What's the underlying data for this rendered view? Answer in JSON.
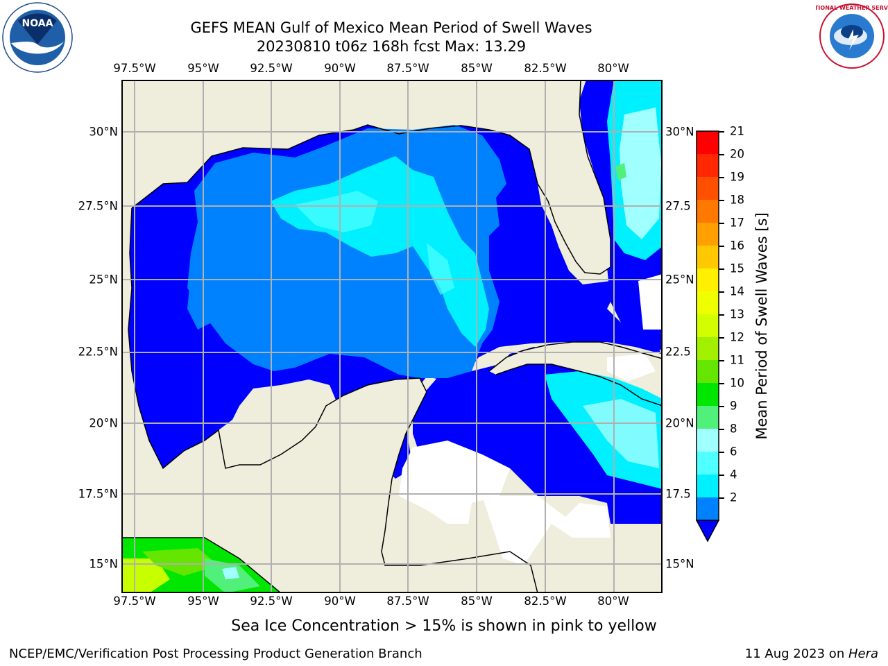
{
  "title_line1": "GEFS MEAN Gulf of Mexico Mean Period of Swell Waves",
  "title_line2": "20230810 t06z 168h fcst   Max: 13.29",
  "lon_labels": [
    "97.5°W",
    "95°W",
    "92.5°W",
    "90°W",
    "87.5°W",
    "85°W",
    "82.5°W",
    "80°W"
  ],
  "lat_labels": [
    "30°N",
    "27.5°N",
    "25°N",
    "22.5°N",
    "20°N",
    "17.5°N",
    "15°N"
  ],
  "right_lat_labels": [
    "30°N",
    "27.5",
    "25°N",
    "22.5",
    "20°N",
    "17.5",
    "15°N"
  ],
  "colorbar": {
    "label": "Mean Period of Swell Waves [s]",
    "ticks": [
      "21",
      "20",
      "19",
      "18",
      "17",
      "16",
      "15",
      "14",
      "13",
      "12",
      "11",
      "10",
      "9",
      "8",
      "6",
      "4",
      "2"
    ],
    "colors": [
      "#ff0000",
      "#ff2800",
      "#ff5000",
      "#ff7800",
      "#ffa000",
      "#ffc800",
      "#fff000",
      "#f0ff00",
      "#d2ff00",
      "#a0f000",
      "#64e600",
      "#00e600",
      "#50f07a",
      "#a0ffff",
      "#50ffff",
      "#00f0ff",
      "#0082ff"
    ],
    "extend_color": "#0000ff"
  },
  "colors": {
    "land": "#efeddc",
    "sea_low": "#0000ff",
    "sea_2": "#0082ff",
    "sea_4": "#00f0ff",
    "sea_6": "#50ffff",
    "sea_8": "#a0ffff",
    "green_9": "#50f07a",
    "green_10": "#00e600",
    "green_11": "#64e600",
    "green_12": "#c8ff00",
    "grid": "#b0b0b0"
  },
  "note": "Sea Ice Concentration > 15% is shown in pink to yellow",
  "footer_left": "NCEP/EMC/Verification Post Processing Product Generation Branch",
  "footer_right_text": "11 Aug 2023 on ",
  "footer_right_italic": "Hera",
  "logo_left_text": "NOAA",
  "logo_right_text": "NATIONAL WEATHER SERVICE"
}
